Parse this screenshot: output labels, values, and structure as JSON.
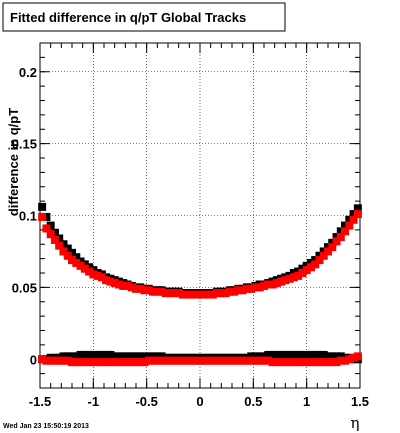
{
  "chart_data": {
    "type": "scatter",
    "title": "Fitted difference in q/pT  Global Tracks",
    "xlabel": "η",
    "ylabel": "difference in q/pT",
    "timestamp": "Wed Jan 23 15:50:19 2013",
    "xlim": [
      -1.5,
      1.5
    ],
    "ylim": [
      -0.02,
      0.22
    ],
    "x_ticks": [
      -1.5,
      -1,
      -0.5,
      0,
      0.5,
      1,
      1.5
    ],
    "x_tick_labels": [
      "-1.5",
      "-1",
      "-0.5",
      "0",
      "0.5",
      "1",
      "1.5"
    ],
    "y_ticks": [
      0,
      0.05,
      0.1,
      0.15,
      0.2
    ],
    "y_tick_labels": [
      "0",
      "0.05",
      "0.1",
      "0.15",
      "0.2"
    ],
    "grid": true,
    "series": [
      {
        "color": "#000000",
        "x": [
          -1.48,
          -1.44,
          -1.4,
          -1.36,
          -1.32,
          -1.28,
          -1.24,
          -1.2,
          -1.16,
          -1.12,
          -1.08,
          -1.04,
          -1,
          -0.96,
          -0.92,
          -0.88,
          -0.84,
          -0.8,
          -0.76,
          -0.72,
          -0.68,
          -0.64,
          -0.6,
          -0.56,
          -0.52,
          -0.48,
          -0.44,
          -0.4,
          -0.36,
          -0.32,
          -0.28,
          -0.24,
          -0.2,
          -0.16,
          -0.12,
          -0.08,
          -0.04,
          0,
          0.04,
          0.08,
          0.12,
          0.16,
          0.2,
          0.24,
          0.28,
          0.32,
          0.36,
          0.4,
          0.44,
          0.48,
          0.52,
          0.56,
          0.6,
          0.64,
          0.68,
          0.72,
          0.76,
          0.8,
          0.84,
          0.88,
          0.92,
          0.96,
          1,
          1.04,
          1.08,
          1.12,
          1.16,
          1.2,
          1.24,
          1.28,
          1.32,
          1.36,
          1.4,
          1.44,
          1.48
        ],
        "y": [
          0.106,
          0.099,
          0.093,
          0.088,
          0.084,
          0.08,
          0.077,
          0.074,
          0.071,
          0.068,
          0.066,
          0.064,
          0.062,
          0.06,
          0.059,
          0.057,
          0.056,
          0.055,
          0.054,
          0.053,
          0.052,
          0.051,
          0.05,
          0.05,
          0.049,
          0.049,
          0.048,
          0.048,
          0.048,
          0.047,
          0.047,
          0.047,
          0.047,
          0.046,
          0.046,
          0.046,
          0.046,
          0.046,
          0.046,
          0.046,
          0.046,
          0.047,
          0.047,
          0.047,
          0.048,
          0.048,
          0.049,
          0.049,
          0.05,
          0.05,
          0.051,
          0.052,
          0.052,
          0.053,
          0.054,
          0.055,
          0.056,
          0.057,
          0.058,
          0.06,
          0.061,
          0.063,
          0.065,
          0.067,
          0.069,
          0.072,
          0.075,
          0.078,
          0.081,
          0.085,
          0.089,
          0.093,
          0.097,
          0.101,
          0.105
        ]
      },
      {
        "color": "#ff0000",
        "x": [
          -1.48,
          -1.44,
          -1.4,
          -1.36,
          -1.32,
          -1.28,
          -1.24,
          -1.2,
          -1.16,
          -1.12,
          -1.08,
          -1.04,
          -1,
          -0.96,
          -0.92,
          -0.88,
          -0.84,
          -0.8,
          -0.76,
          -0.72,
          -0.68,
          -0.64,
          -0.6,
          -0.56,
          -0.52,
          -0.48,
          -0.44,
          -0.4,
          -0.36,
          -0.32,
          -0.28,
          -0.24,
          -0.2,
          -0.16,
          -0.12,
          -0.08,
          -0.04,
          0,
          0.04,
          0.08,
          0.12,
          0.16,
          0.2,
          0.24,
          0.28,
          0.32,
          0.36,
          0.4,
          0.44,
          0.48,
          0.52,
          0.56,
          0.6,
          0.64,
          0.68,
          0.72,
          0.76,
          0.8,
          0.84,
          0.88,
          0.92,
          0.96,
          1,
          1.04,
          1.08,
          1.12,
          1.16,
          1.2,
          1.24,
          1.28,
          1.32,
          1.36,
          1.4,
          1.44,
          1.48
        ],
        "y": [
          0.099,
          0.091,
          0.087,
          0.083,
          0.079,
          0.075,
          0.072,
          0.069,
          0.067,
          0.065,
          0.063,
          0.061,
          0.059,
          0.058,
          0.057,
          0.055,
          0.054,
          0.053,
          0.052,
          0.051,
          0.051,
          0.05,
          0.049,
          0.049,
          0.048,
          0.048,
          0.047,
          0.047,
          0.047,
          0.046,
          0.046,
          0.046,
          0.046,
          0.045,
          0.045,
          0.045,
          0.045,
          0.045,
          0.045,
          0.045,
          0.045,
          0.046,
          0.046,
          0.046,
          0.047,
          0.047,
          0.048,
          0.048,
          0.049,
          0.049,
          0.05,
          0.05,
          0.051,
          0.052,
          0.052,
          0.053,
          0.054,
          0.055,
          0.056,
          0.057,
          0.058,
          0.06,
          0.062,
          0.064,
          0.066,
          0.069,
          0.072,
          0.075,
          0.078,
          0.082,
          0.085,
          0.089,
          0.093,
          0.097,
          0.101
        ]
      },
      {
        "color": "#000000",
        "x": [
          -1.48,
          -1.44,
          -1.4,
          -1.36,
          -1.32,
          -1.28,
          -1.24,
          -1.2,
          -1.16,
          -1.12,
          -1.08,
          -1.04,
          -1,
          -0.96,
          -0.92,
          -0.88,
          -0.84,
          -0.8,
          -0.76,
          -0.72,
          -0.68,
          -0.64,
          -0.6,
          -0.56,
          -0.52,
          -0.48,
          -0.44,
          -0.4,
          -0.36,
          -0.32,
          -0.28,
          -0.24,
          -0.2,
          -0.16,
          -0.12,
          -0.08,
          -0.04,
          0,
          0.04,
          0.08,
          0.12,
          0.16,
          0.2,
          0.24,
          0.28,
          0.32,
          0.36,
          0.4,
          0.44,
          0.48,
          0.52,
          0.56,
          0.6,
          0.64,
          0.68,
          0.72,
          0.76,
          0.8,
          0.84,
          0.88,
          0.92,
          0.96,
          1,
          1.04,
          1.08,
          1.12,
          1.16,
          1.2,
          1.24,
          1.28,
          1.32,
          1.36,
          1.4,
          1.44,
          1.48
        ],
        "y": [
          0.0,
          0.0,
          0.001,
          0.001,
          0.001,
          0.002,
          0.002,
          0.002,
          0.002,
          0.003,
          0.003,
          0.003,
          0.003,
          0.003,
          0.003,
          0.003,
          0.003,
          0.002,
          0.002,
          0.002,
          0.002,
          0.002,
          0.002,
          0.002,
          0.002,
          0.002,
          0.002,
          0.002,
          0.002,
          0.001,
          0.001,
          0.001,
          0.001,
          0.001,
          0.001,
          0.001,
          0.001,
          0.001,
          0.001,
          0.001,
          0.001,
          0.001,
          0.001,
          0.001,
          0.001,
          0.001,
          0.001,
          0.001,
          0.001,
          0.002,
          0.002,
          0.002,
          0.002,
          0.003,
          0.003,
          0.003,
          0.003,
          0.003,
          0.003,
          0.003,
          0.003,
          0.003,
          0.003,
          0.003,
          0.003,
          0.003,
          0.003,
          0.002,
          0.002,
          0.002,
          0.002,
          0.001,
          0.001,
          0.0,
          0.0
        ]
      },
      {
        "color": "#ff0000",
        "x": [
          -1.48,
          -1.44,
          -1.4,
          -1.36,
          -1.32,
          -1.28,
          -1.24,
          -1.2,
          -1.16,
          -1.12,
          -1.08,
          -1.04,
          -1,
          -0.96,
          -0.92,
          -0.88,
          -0.84,
          -0.8,
          -0.76,
          -0.72,
          -0.68,
          -0.64,
          -0.6,
          -0.56,
          -0.52,
          -0.48,
          -0.44,
          -0.4,
          -0.36,
          -0.32,
          -0.28,
          -0.24,
          -0.2,
          -0.16,
          -0.12,
          -0.08,
          -0.04,
          0,
          0.04,
          0.08,
          0.12,
          0.16,
          0.2,
          0.24,
          0.28,
          0.32,
          0.36,
          0.4,
          0.44,
          0.48,
          0.52,
          0.56,
          0.6,
          0.64,
          0.68,
          0.72,
          0.76,
          0.8,
          0.84,
          0.88,
          0.92,
          0.96,
          1,
          1.04,
          1.08,
          1.12,
          1.16,
          1.2,
          1.24,
          1.28,
          1.32,
          1.36,
          1.4,
          1.44,
          1.48
        ],
        "y": [
          0.0,
          -0.001,
          -0.001,
          -0.001,
          -0.001,
          -0.001,
          -0.001,
          -0.002,
          -0.002,
          -0.002,
          -0.002,
          -0.002,
          -0.002,
          -0.002,
          -0.002,
          -0.002,
          -0.002,
          -0.002,
          -0.002,
          -0.002,
          -0.002,
          -0.002,
          -0.002,
          -0.002,
          -0.002,
          -0.001,
          -0.001,
          -0.001,
          -0.001,
          -0.001,
          -0.001,
          -0.001,
          -0.001,
          -0.001,
          -0.001,
          -0.001,
          -0.001,
          -0.001,
          -0.001,
          -0.001,
          -0.001,
          -0.001,
          -0.001,
          -0.001,
          -0.001,
          -0.001,
          -0.001,
          -0.001,
          -0.001,
          -0.001,
          -0.001,
          -0.001,
          -0.001,
          -0.001,
          -0.002,
          -0.002,
          -0.002,
          -0.002,
          -0.002,
          -0.002,
          -0.002,
          -0.002,
          -0.002,
          -0.002,
          -0.002,
          -0.002,
          -0.002,
          -0.002,
          -0.002,
          -0.002,
          -0.001,
          -0.001,
          0.0,
          0.001,
          0.002
        ]
      }
    ]
  }
}
